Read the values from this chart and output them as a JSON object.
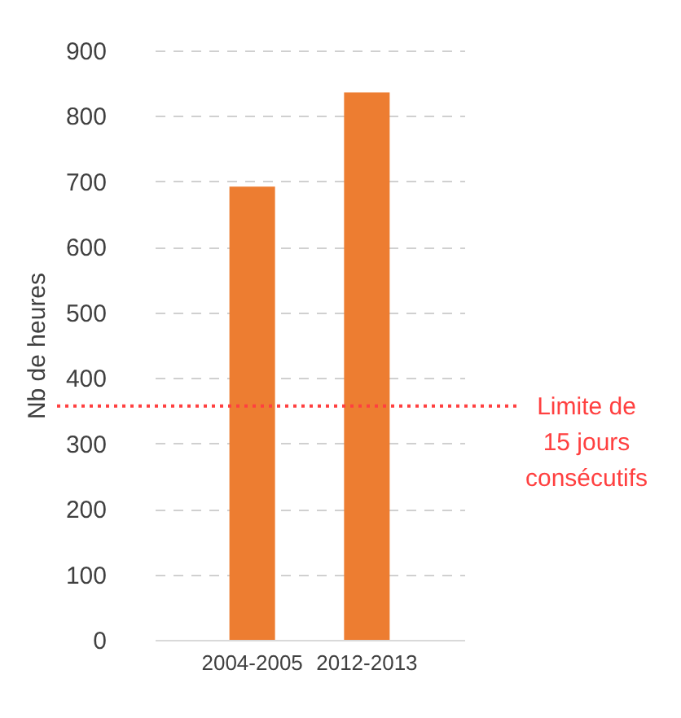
{
  "chart_data": {
    "type": "bar",
    "ylabel": "Nb de heures",
    "categories": [
      "2004-2005",
      "2012-2013"
    ],
    "values": [
      692,
      836
    ],
    "color": "#ed7d31",
    "ylim": [
      0,
      900
    ],
    "yticks": [
      0,
      100,
      200,
      300,
      400,
      500,
      600,
      700,
      800,
      900
    ],
    "grid": "y",
    "ref_lines": [
      {
        "axis": "y",
        "value": 357,
        "label": "Limite de\n15 jours\nconsécutifs",
        "color": "#ff4040",
        "line_style": "dotted"
      }
    ]
  }
}
